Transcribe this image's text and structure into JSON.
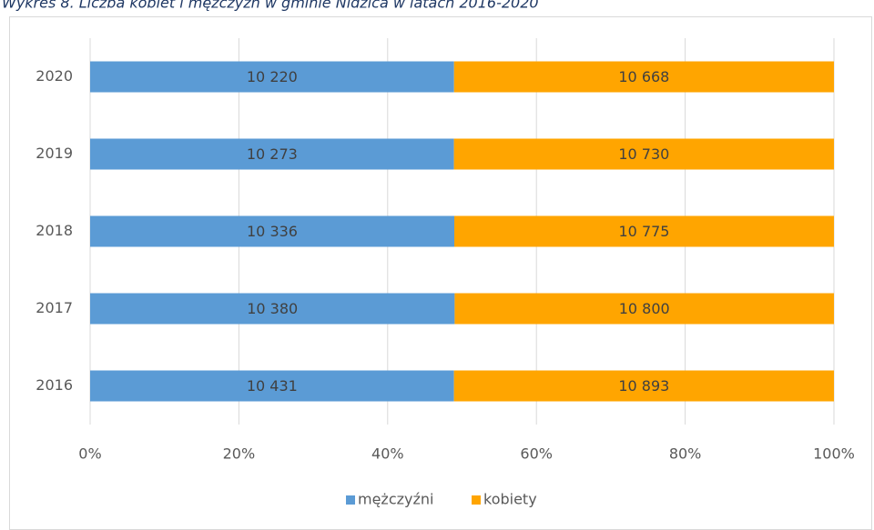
{
  "chart_data": {
    "type": "bar",
    "orientation": "horizontal",
    "stacked": "percent",
    "title": "Wykres 8. Liczba kobiet i mężczyzn w gminie Nidzica w latach 2016-2020",
    "categories": [
      "2016",
      "2017",
      "2018",
      "2019",
      "2020"
    ],
    "series": [
      {
        "name": "mężczyźni",
        "color": "#5b9bd5",
        "values": [
          10431,
          10380,
          10336,
          10273,
          10220
        ],
        "value_labels": [
          "10 431",
          "10 380",
          "10 336",
          "10 273",
          "10 220"
        ]
      },
      {
        "name": "kobiety",
        "color": "#ffa500",
        "values": [
          10893,
          10800,
          10775,
          10730,
          10668
        ],
        "value_labels": [
          "10 893",
          "10 800",
          "10 775",
          "10 730",
          "10 668"
        ]
      }
    ],
    "xlim": [
      0,
      100
    ],
    "xticks": [
      {
        "value": 0,
        "label": "0%"
      },
      {
        "value": 20,
        "label": "20%"
      },
      {
        "value": 40,
        "label": "40%"
      },
      {
        "value": 60,
        "label": "60%"
      },
      {
        "value": 80,
        "label": "80%"
      },
      {
        "value": 100,
        "label": "100%"
      }
    ],
    "grid": true,
    "legend": "bottom"
  }
}
